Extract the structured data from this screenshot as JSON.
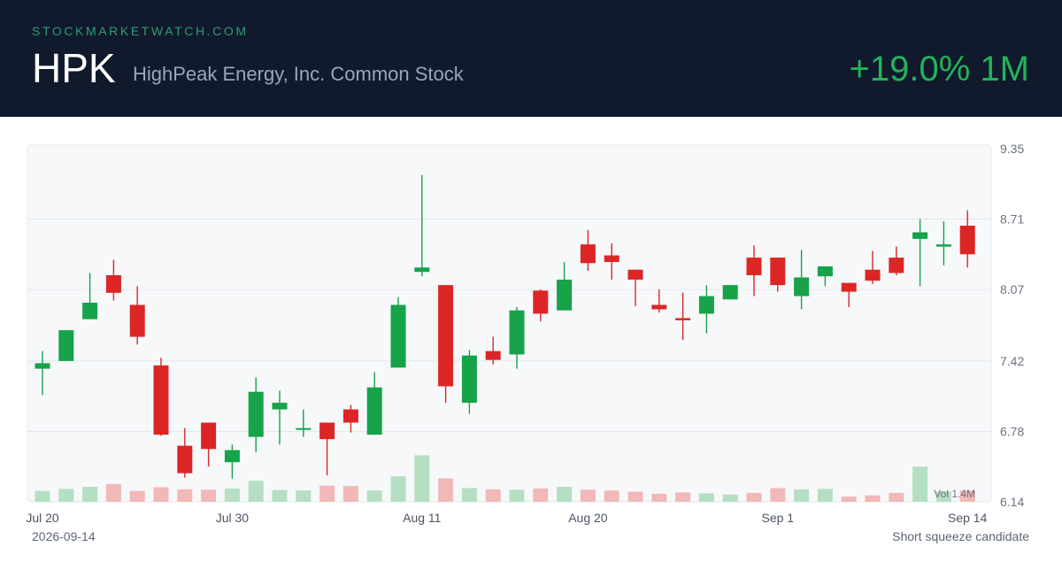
{
  "header": {
    "site": "STOCKMARKETWATCH.COM",
    "ticker": "HPK",
    "company": "HighPeak Energy, Inc. Common Stock",
    "change": "+19.0% 1M"
  },
  "footer": {
    "date": "2026-09-14",
    "note": "Short squeeze candidate"
  },
  "colors": {
    "up": "#16a34a",
    "down": "#dc2626",
    "up_volume": "#b4dfc3",
    "down_volume": "#f2b8b8",
    "header_bg": "#111a2c",
    "plot_bg": "#f7f8fa"
  },
  "chart_data": {
    "type": "candlestick",
    "ylim": [
      6.14,
      9.35
    ],
    "y_ticks": [
      "9.35",
      "8.71",
      "8.07",
      "7.42",
      "6.78",
      "6.14"
    ],
    "x_ticks": [
      {
        "label": "Jul 20",
        "index": 0
      },
      {
        "label": "Jul 30",
        "index": 8
      },
      {
        "label": "Aug 11",
        "index": 16
      },
      {
        "label": "Aug 20",
        "index": 23
      },
      {
        "label": "Sep 1",
        "index": 31
      },
      {
        "label": "Sep 14",
        "index": 39
      }
    ],
    "volume_label": "Vol 1.4M",
    "volume_max": 1.4,
    "candles": [
      {
        "o": 7.35,
        "h": 7.51,
        "l": 7.11,
        "c": 7.4,
        "v": 0.27
      },
      {
        "o": 7.42,
        "h": 7.7,
        "l": 7.42,
        "c": 7.7,
        "v": 0.32
      },
      {
        "o": 7.8,
        "h": 8.22,
        "l": 7.8,
        "c": 7.95,
        "v": 0.37
      },
      {
        "o": 8.2,
        "h": 8.34,
        "l": 7.97,
        "c": 8.04,
        "v": 0.44
      },
      {
        "o": 7.93,
        "h": 8.1,
        "l": 7.57,
        "c": 7.64,
        "v": 0.27
      },
      {
        "o": 7.38,
        "h": 7.45,
        "l": 6.74,
        "c": 6.75,
        "v": 0.36
      },
      {
        "o": 6.65,
        "h": 6.81,
        "l": 6.36,
        "c": 6.4,
        "v": 0.31
      },
      {
        "o": 6.86,
        "h": 6.86,
        "l": 6.46,
        "c": 6.62,
        "v": 0.3
      },
      {
        "o": 6.5,
        "h": 6.66,
        "l": 6.35,
        "c": 6.61,
        "v": 0.33
      },
      {
        "o": 6.73,
        "h": 7.27,
        "l": 6.59,
        "c": 7.14,
        "v": 0.52
      },
      {
        "o": 6.98,
        "h": 7.15,
        "l": 6.66,
        "c": 7.04,
        "v": 0.29
      },
      {
        "o": 6.81,
        "h": 6.98,
        "l": 6.73,
        "c": 6.81,
        "v": 0.28
      },
      {
        "o": 6.86,
        "h": 6.86,
        "l": 6.38,
        "c": 6.71,
        "v": 0.4
      },
      {
        "o": 6.98,
        "h": 7.02,
        "l": 6.77,
        "c": 6.86,
        "v": 0.39
      },
      {
        "o": 6.75,
        "h": 7.32,
        "l": 6.75,
        "c": 7.18,
        "v": 0.28
      },
      {
        "o": 7.36,
        "h": 8.0,
        "l": 7.36,
        "c": 7.93,
        "v": 0.63
      },
      {
        "o": 8.23,
        "h": 9.11,
        "l": 8.19,
        "c": 8.27,
        "v": 1.15
      },
      {
        "o": 8.11,
        "h": 8.11,
        "l": 7.04,
        "c": 7.19,
        "v": 0.58
      },
      {
        "o": 7.04,
        "h": 7.52,
        "l": 6.94,
        "c": 7.47,
        "v": 0.34
      },
      {
        "o": 7.51,
        "h": 7.64,
        "l": 7.39,
        "c": 7.43,
        "v": 0.31
      },
      {
        "o": 7.48,
        "h": 7.91,
        "l": 7.35,
        "c": 7.88,
        "v": 0.3
      },
      {
        "o": 8.06,
        "h": 8.07,
        "l": 7.78,
        "c": 7.85,
        "v": 0.33
      },
      {
        "o": 7.88,
        "h": 8.32,
        "l": 7.88,
        "c": 8.16,
        "v": 0.37
      },
      {
        "o": 8.48,
        "h": 8.61,
        "l": 8.24,
        "c": 8.31,
        "v": 0.3
      },
      {
        "o": 8.38,
        "h": 8.49,
        "l": 8.16,
        "c": 8.32,
        "v": 0.28
      },
      {
        "o": 8.25,
        "h": 8.25,
        "l": 7.92,
        "c": 8.16,
        "v": 0.25
      },
      {
        "o": 7.93,
        "h": 8.07,
        "l": 7.86,
        "c": 7.89,
        "v": 0.2
      },
      {
        "o": 7.81,
        "h": 8.04,
        "l": 7.61,
        "c": 7.79,
        "v": 0.23
      },
      {
        "o": 7.85,
        "h": 8.11,
        "l": 7.67,
        "c": 8.01,
        "v": 0.21
      },
      {
        "o": 7.98,
        "h": 8.11,
        "l": 7.98,
        "c": 8.11,
        "v": 0.18
      },
      {
        "o": 8.36,
        "h": 8.47,
        "l": 8.01,
        "c": 8.2,
        "v": 0.22
      },
      {
        "o": 8.36,
        "h": 8.36,
        "l": 8.05,
        "c": 8.11,
        "v": 0.34
      },
      {
        "o": 8.01,
        "h": 8.43,
        "l": 7.89,
        "c": 8.18,
        "v": 0.31
      },
      {
        "o": 8.19,
        "h": 8.28,
        "l": 8.1,
        "c": 8.28,
        "v": 0.32
      },
      {
        "o": 8.13,
        "h": 8.13,
        "l": 7.91,
        "c": 8.05,
        "v": 0.13
      },
      {
        "o": 8.25,
        "h": 8.42,
        "l": 8.12,
        "c": 8.15,
        "v": 0.16
      },
      {
        "o": 8.36,
        "h": 8.46,
        "l": 8.2,
        "c": 8.22,
        "v": 0.22
      },
      {
        "o": 8.53,
        "h": 8.71,
        "l": 8.1,
        "c": 8.59,
        "v": 0.87
      },
      {
        "o": 8.46,
        "h": 8.69,
        "l": 8.29,
        "c": 8.48,
        "v": 0.26
      },
      {
        "o": 8.65,
        "h": 8.79,
        "l": 8.27,
        "c": 8.39,
        "v": 0.28
      }
    ]
  }
}
